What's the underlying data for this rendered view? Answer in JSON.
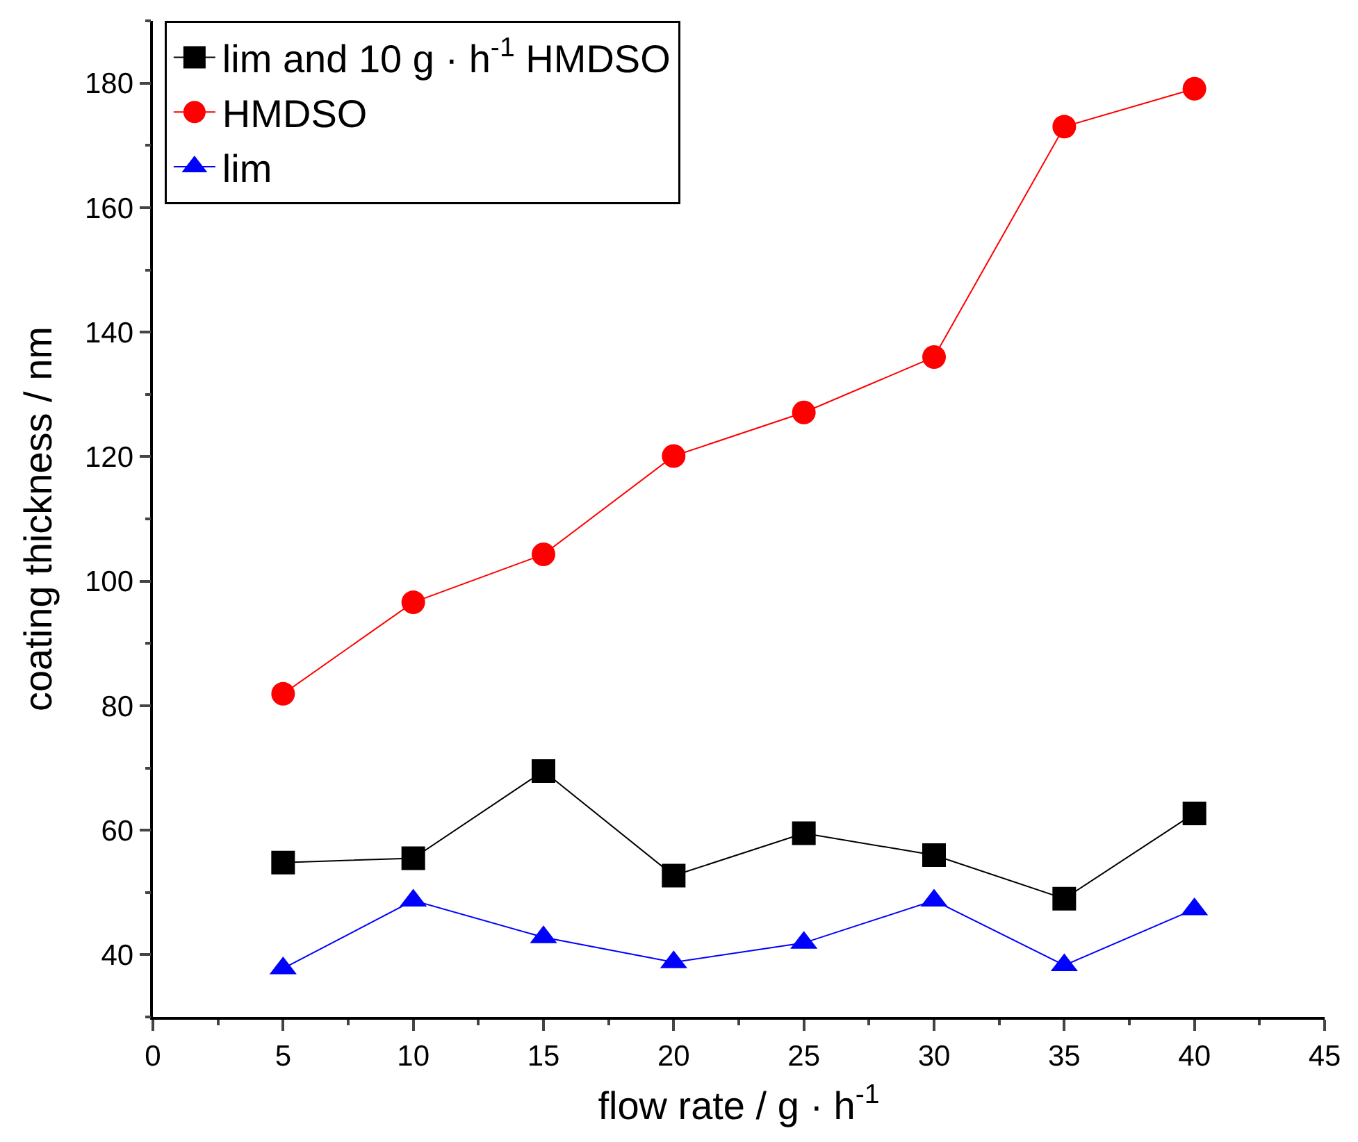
{
  "chart_data": {
    "type": "line",
    "xlabel": "flow rate / g · h$^{-1}$",
    "ylabel": "coating thickness / nm",
    "x": [
      5,
      10,
      15,
      20,
      25,
      30,
      35,
      40
    ],
    "series": [
      {
        "name": "lim and 10 g · h$^{-1}$ HMDSO",
        "color": "#000000",
        "marker": "square",
        "values": [
          54.8,
          55.5,
          69.5,
          52.7,
          59.5,
          56.0,
          49.0,
          62.7
        ]
      },
      {
        "name": "HMDSO",
        "color": "#ff0000",
        "marker": "circle",
        "values": [
          81.9,
          96.6,
          104.3,
          120.1,
          127.1,
          136.0,
          173.0,
          179.1
        ]
      },
      {
        "name": "lim",
        "color": "#0000ff",
        "marker": "triangle",
        "values": [
          37.8,
          48.7,
          42.8,
          38.8,
          41.9,
          48.7,
          38.3,
          47.3
        ]
      }
    ],
    "xlim": [
      0,
      45
    ],
    "xticks": [
      0,
      5,
      10,
      15,
      20,
      25,
      30,
      35,
      40,
      45
    ],
    "ylim": [
      30,
      190
    ],
    "yticks": [
      40,
      60,
      80,
      100,
      120,
      140,
      160,
      180
    ],
    "legend": "top left",
    "line_style": "solid"
  }
}
